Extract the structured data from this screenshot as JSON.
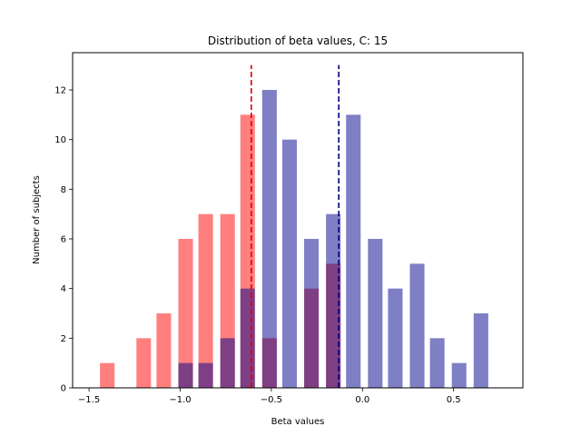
{
  "chart_data": {
    "type": "bar",
    "title": "Distribution of beta values, C: 15",
    "xlabel": "Beta values",
    "ylabel": "Number of subjects",
    "xlim": [
      -1.59,
      0.88
    ],
    "ylim": [
      0,
      13.5
    ],
    "xticks": [
      -1.5,
      -1.0,
      -0.5,
      0.0,
      0.5
    ],
    "xtick_labels": [
      "−1.5",
      "−1.0",
      "−0.5",
      "0.0",
      "0.5"
    ],
    "yticks": [
      0,
      2,
      4,
      6,
      8,
      10,
      12
    ],
    "ytick_labels": [
      "0",
      "2",
      "4",
      "6",
      "8",
      "10",
      "12"
    ],
    "bar_width": 0.1,
    "grid": false,
    "series": [
      {
        "color": "#ff0000",
        "alpha": 0.5,
        "bars": [
          {
            "x": -1.4,
            "value": 1
          },
          {
            "x": -1.2,
            "value": 2
          },
          {
            "x": -1.09,
            "value": 3
          },
          {
            "x": -0.97,
            "value": 6
          },
          {
            "x": -0.86,
            "value": 7
          },
          {
            "x": -0.74,
            "value": 7
          },
          {
            "x": -0.63,
            "value": 11
          },
          {
            "x": -0.51,
            "value": 2
          },
          {
            "x": -0.28,
            "value": 4
          },
          {
            "x": -0.16,
            "value": 5
          }
        ],
        "mean": -0.61,
        "mean_line_color": "#dd0000"
      },
      {
        "color": "#00008b",
        "alpha": 0.5,
        "bars": [
          {
            "x": -0.97,
            "value": 1
          },
          {
            "x": -0.86,
            "value": 1
          },
          {
            "x": -0.74,
            "value": 2
          },
          {
            "x": -0.63,
            "value": 4
          },
          {
            "x": -0.51,
            "value": 12
          },
          {
            "x": -0.4,
            "value": 10
          },
          {
            "x": -0.28,
            "value": 6
          },
          {
            "x": -0.16,
            "value": 7
          },
          {
            "x": -0.05,
            "value": 11
          },
          {
            "x": 0.07,
            "value": 6
          },
          {
            "x": 0.18,
            "value": 4
          },
          {
            "x": 0.3,
            "value": 5
          },
          {
            "x": 0.41,
            "value": 2
          },
          {
            "x": 0.53,
            "value": 1
          },
          {
            "x": 0.65,
            "value": 3
          }
        ],
        "mean": -0.13,
        "mean_line_color": "#000080"
      }
    ],
    "mean_line_top": 13.0
  }
}
